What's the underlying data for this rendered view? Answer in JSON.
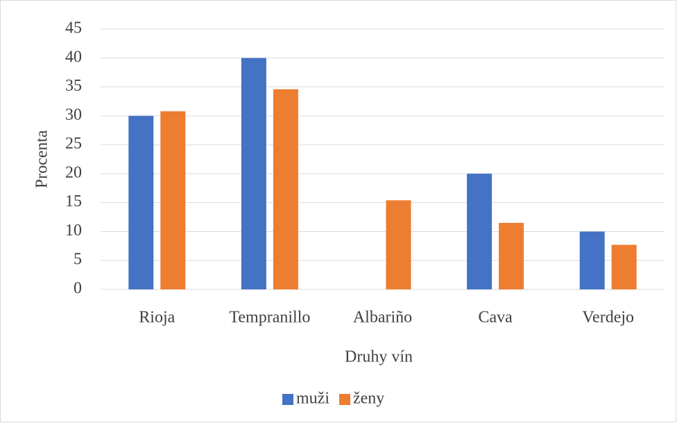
{
  "chart_data": {
    "type": "bar",
    "x_label": "Druhy vín",
    "y_label": "Procenta",
    "categories": [
      "Rioja",
      "Tempranillo",
      "Albariño",
      "Cava",
      "Verdejo"
    ],
    "series": [
      {
        "name": "muži",
        "color": "#4472c4",
        "values": [
          30,
          40,
          0,
          20,
          10
        ]
      },
      {
        "name": "ženy",
        "color": "#ed7d31",
        "values": [
          30.8,
          34.6,
          15.4,
          11.5,
          7.7
        ]
      }
    ],
    "ylim": [
      0,
      45
    ],
    "yticks": [
      0,
      5,
      10,
      15,
      20,
      25,
      30,
      35,
      40,
      45
    ],
    "grid": true,
    "legend": "bottom"
  }
}
